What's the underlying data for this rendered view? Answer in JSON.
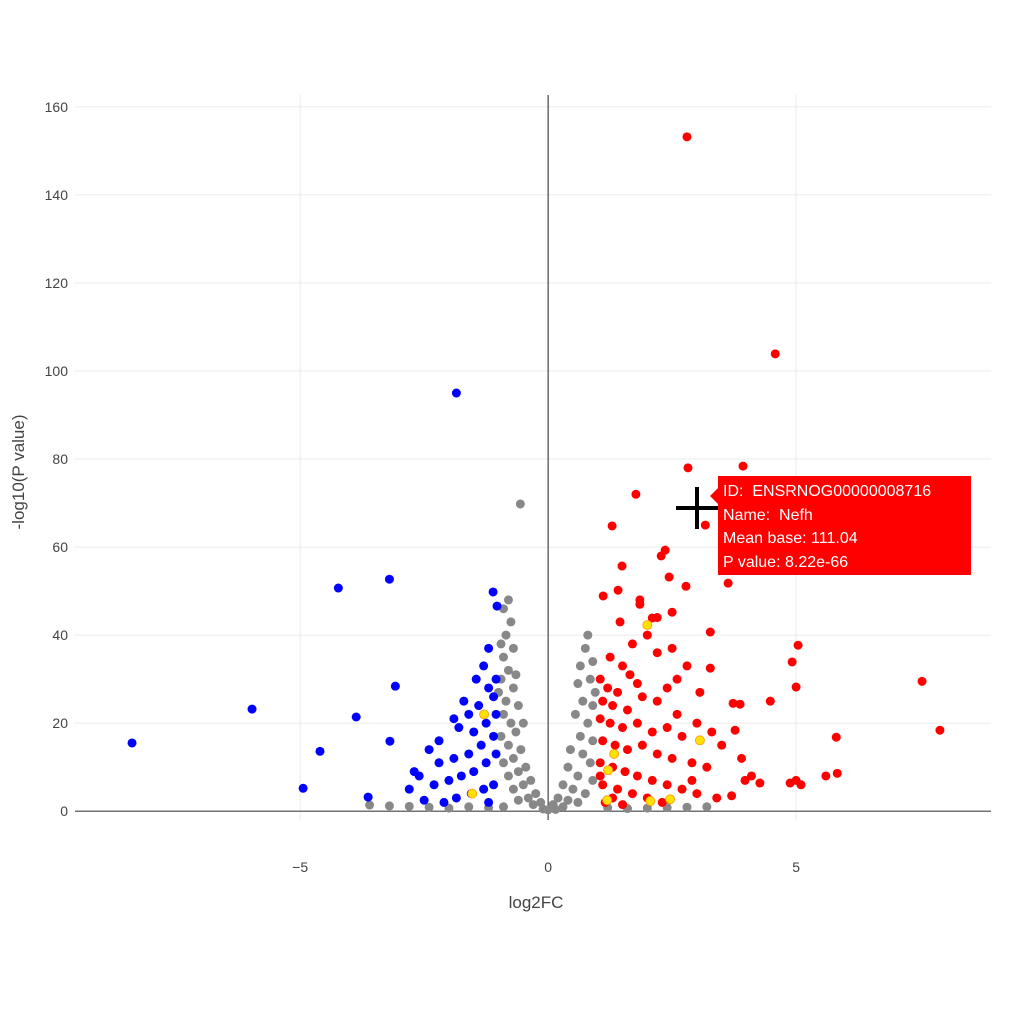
{
  "chart_data": {
    "type": "scatter",
    "title": "",
    "xlabel": "log2FC",
    "ylabel": "-log10(P value)",
    "xlim": [
      -9.54,
      8.93
    ],
    "ylim": [
      -2,
      162.7
    ],
    "xticks": [
      -5,
      0,
      5
    ],
    "xtick_labels": [
      "−5",
      "0",
      "5"
    ],
    "yticks": [
      0,
      20,
      40,
      60,
      80,
      100,
      120,
      140,
      160
    ],
    "ytick_labels": [
      "0",
      "20",
      "40",
      "60",
      "80",
      "100",
      "120",
      "140",
      "160"
    ],
    "grid": true,
    "colors": {
      "up": "#ff0000",
      "down": "#0000ff",
      "ns": "#888888",
      "highlight": "#ffe100"
    },
    "series": [
      {
        "group": "ns",
        "color": "#888888",
        "points": [
          [
            -0.56,
            69.8
          ],
          [
            -0.8,
            48
          ],
          [
            -0.9,
            46
          ],
          [
            -0.75,
            43
          ],
          [
            -0.85,
            40
          ],
          [
            -0.7,
            37
          ],
          [
            -0.9,
            35
          ],
          [
            -0.8,
            32
          ],
          [
            -0.95,
            30
          ],
          [
            -0.7,
            28
          ],
          [
            -0.85,
            25
          ],
          [
            -0.6,
            24
          ],
          [
            -0.9,
            22
          ],
          [
            -0.75,
            20
          ],
          [
            -0.65,
            18
          ],
          [
            -0.95,
            17
          ],
          [
            -0.8,
            15
          ],
          [
            -0.55,
            14
          ],
          [
            -0.7,
            12
          ],
          [
            -0.9,
            11
          ],
          [
            -0.45,
            10
          ],
          [
            -0.6,
            9
          ],
          [
            -0.8,
            8
          ],
          [
            -0.35,
            7
          ],
          [
            -0.5,
            6
          ],
          [
            -0.7,
            5
          ],
          [
            -0.25,
            4
          ],
          [
            -0.4,
            3
          ],
          [
            -0.6,
            2.5
          ],
          [
            -0.15,
            2
          ],
          [
            -0.3,
            1.5
          ],
          [
            -0.9,
            1
          ],
          [
            -1.2,
            0.8
          ],
          [
            -1.6,
            1
          ],
          [
            -2.0,
            0.7
          ],
          [
            -2.4,
            0.9
          ],
          [
            -2.8,
            1.1
          ],
          [
            -3.2,
            1.2
          ],
          [
            -3.6,
            1.4
          ],
          [
            -1.0,
            27
          ],
          [
            -0.95,
            38
          ],
          [
            -0.65,
            31
          ],
          [
            -0.5,
            20
          ],
          [
            0.8,
            40
          ],
          [
            0.75,
            37
          ],
          [
            0.65,
            33
          ],
          [
            0.9,
            34
          ],
          [
            0.6,
            29
          ],
          [
            0.85,
            30
          ],
          [
            0.7,
            25
          ],
          [
            0.9,
            24
          ],
          [
            0.55,
            22
          ],
          [
            0.8,
            20
          ],
          [
            0.65,
            17
          ],
          [
            0.9,
            16
          ],
          [
            0.45,
            14
          ],
          [
            0.7,
            13
          ],
          [
            0.85,
            11
          ],
          [
            0.4,
            10
          ],
          [
            0.6,
            8
          ],
          [
            0.9,
            7
          ],
          [
            0.3,
            6
          ],
          [
            0.5,
            5
          ],
          [
            0.75,
            4
          ],
          [
            0.2,
            3
          ],
          [
            0.4,
            2.5
          ],
          [
            0.6,
            2
          ],
          [
            0.1,
            1.5
          ],
          [
            0.3,
            1
          ],
          [
            1.2,
            0.8
          ],
          [
            1.6,
            0.6
          ],
          [
            2.0,
            0.7
          ],
          [
            2.4,
            0.8
          ],
          [
            2.8,
            0.9
          ],
          [
            3.2,
            1.0
          ],
          [
            0.95,
            27
          ],
          [
            0,
            0.3
          ],
          [
            -0.1,
            0.5
          ],
          [
            0.15,
            0.4
          ]
        ]
      },
      {
        "group": "up",
        "color": "#ff0000",
        "points": [
          [
            2.8,
            153.2
          ],
          [
            4.58,
            103.9
          ],
          [
            3.93,
            78.4
          ],
          [
            2.82,
            78.0
          ],
          [
            1.77,
            72.0
          ],
          [
            3.17,
            65.0
          ],
          [
            1.29,
            64.8
          ],
          [
            3.63,
            51.8
          ],
          [
            1.49,
            55.7
          ],
          [
            2.36,
            59.3
          ],
          [
            2.28,
            58
          ],
          [
            2.44,
            53.2
          ],
          [
            1.11,
            48.9
          ],
          [
            1.41,
            50.2
          ],
          [
            3.27,
            40.7
          ],
          [
            5.04,
            37.7
          ],
          [
            4.92,
            33.9
          ],
          [
            5.0,
            28.2
          ],
          [
            4.48,
            25
          ],
          [
            7.54,
            29.5
          ],
          [
            7.9,
            18.4
          ],
          [
            5.81,
            16.8
          ],
          [
            5.83,
            8.6
          ],
          [
            5.6,
            8
          ],
          [
            5.0,
            7
          ],
          [
            5.1,
            6
          ],
          [
            4.88,
            6.4
          ],
          [
            4.27,
            6.4
          ],
          [
            3.97,
            7
          ],
          [
            3.06,
            27
          ],
          [
            3.27,
            32.5
          ],
          [
            3.77,
            18.4
          ],
          [
            3.87,
            24.3
          ],
          [
            3.73,
            24.5
          ],
          [
            2.78,
            51.1
          ],
          [
            2.5,
            45.2
          ],
          [
            1.85,
            48
          ],
          [
            2.1,
            43.9
          ],
          [
            1.05,
            30
          ],
          [
            1.2,
            28
          ],
          [
            1.4,
            27
          ],
          [
            1.1,
            25
          ],
          [
            1.3,
            24
          ],
          [
            1.6,
            23
          ],
          [
            1.9,
            26
          ],
          [
            2.2,
            25
          ],
          [
            1.05,
            21
          ],
          [
            1.25,
            20
          ],
          [
            1.5,
            19
          ],
          [
            1.8,
            20
          ],
          [
            2.1,
            18
          ],
          [
            2.4,
            19
          ],
          [
            2.7,
            17
          ],
          [
            1.1,
            16
          ],
          [
            1.35,
            15
          ],
          [
            1.6,
            14
          ],
          [
            1.9,
            15
          ],
          [
            2.2,
            13
          ],
          [
            2.5,
            12
          ],
          [
            2.9,
            11
          ],
          [
            3.2,
            10
          ],
          [
            1.05,
            11
          ],
          [
            1.3,
            10
          ],
          [
            1.55,
            9
          ],
          [
            1.8,
            8
          ],
          [
            2.1,
            7
          ],
          [
            2.4,
            6
          ],
          [
            2.7,
            5
          ],
          [
            3.0,
            4
          ],
          [
            3.4,
            3
          ],
          [
            3.7,
            3.5
          ],
          [
            1.1,
            6
          ],
          [
            1.4,
            5
          ],
          [
            1.7,
            4
          ],
          [
            2.0,
            3
          ],
          [
            2.3,
            2
          ],
          [
            1.15,
            2
          ],
          [
            1.5,
            1.5
          ],
          [
            1.25,
            35
          ],
          [
            1.5,
            33
          ],
          [
            1.7,
            38
          ],
          [
            2.0,
            40
          ],
          [
            2.2,
            36
          ],
          [
            1.65,
            31
          ],
          [
            2.6,
            30
          ],
          [
            2.4,
            28
          ],
          [
            3.0,
            20
          ],
          [
            3.5,
            15
          ],
          [
            3.9,
            12
          ],
          [
            4.1,
            8
          ],
          [
            1.05,
            8
          ],
          [
            1.3,
            3
          ],
          [
            2.9,
            7
          ],
          [
            2.6,
            22
          ],
          [
            1.8,
            29
          ],
          [
            1.45,
            43
          ],
          [
            1.85,
            47
          ],
          [
            2.2,
            44
          ],
          [
            2.5,
            37
          ],
          [
            2.8,
            33
          ],
          [
            3.3,
            18
          ]
        ]
      },
      {
        "group": "down",
        "color": "#0000ff",
        "points": [
          [
            -1.85,
            95
          ],
          [
            -3.2,
            52.7
          ],
          [
            -4.23,
            50.7
          ],
          [
            -5.97,
            23.2
          ],
          [
            -8.39,
            15.5
          ],
          [
            -4.94,
            5.2
          ],
          [
            -4.6,
            13.6
          ],
          [
            -3.87,
            21.4
          ],
          [
            -3.08,
            28.4
          ],
          [
            -3.19,
            15.9
          ],
          [
            -3.63,
            3.2
          ],
          [
            -1.11,
            49.8
          ],
          [
            -1.03,
            46.6
          ],
          [
            -1.05,
            30
          ],
          [
            -1.2,
            28
          ],
          [
            -1.3,
            33
          ],
          [
            -1.1,
            26
          ],
          [
            -1.4,
            24
          ],
          [
            -1.6,
            22
          ],
          [
            -1.05,
            22
          ],
          [
            -1.25,
            20
          ],
          [
            -1.5,
            18
          ],
          [
            -1.8,
            19
          ],
          [
            -1.1,
            17
          ],
          [
            -1.35,
            15
          ],
          [
            -1.6,
            13
          ],
          [
            -1.9,
            12
          ],
          [
            -2.2,
            11
          ],
          [
            -1.05,
            13
          ],
          [
            -1.25,
            11
          ],
          [
            -1.5,
            9
          ],
          [
            -1.75,
            8
          ],
          [
            -2.0,
            7
          ],
          [
            -2.3,
            6
          ],
          [
            -2.6,
            8
          ],
          [
            -2.8,
            5
          ],
          [
            -1.1,
            6
          ],
          [
            -1.3,
            5
          ],
          [
            -1.55,
            4
          ],
          [
            -1.85,
            3
          ],
          [
            -2.1,
            2
          ],
          [
            -2.5,
            2.5
          ],
          [
            -1.2,
            2
          ],
          [
            -2.2,
            16
          ],
          [
            -1.9,
            21
          ],
          [
            -1.7,
            25
          ],
          [
            -2.4,
            14
          ],
          [
            -2.7,
            9
          ],
          [
            -1.45,
            30
          ],
          [
            -1.2,
            37
          ]
        ]
      },
      {
        "group": "highlight",
        "color": "#ffe100",
        "points": [
          [
            2.0,
            42.3
          ],
          [
            3.06,
            16.1
          ],
          [
            -1.29,
            22
          ],
          [
            -1.53,
            4
          ],
          [
            1.33,
            13
          ],
          [
            1.21,
            9.3
          ],
          [
            1.19,
            2.5
          ],
          [
            2.06,
            2.3
          ],
          [
            2.46,
            2.7
          ]
        ]
      }
    ],
    "hover": {
      "id_line": "ID:  ENSRNOG00000008716",
      "name_line": "Name:  Nefh",
      "mean_base_line": "Mean base: 111.04",
      "p_value_line": "P value: 8.22e-66",
      "color": "#ff0000"
    }
  }
}
